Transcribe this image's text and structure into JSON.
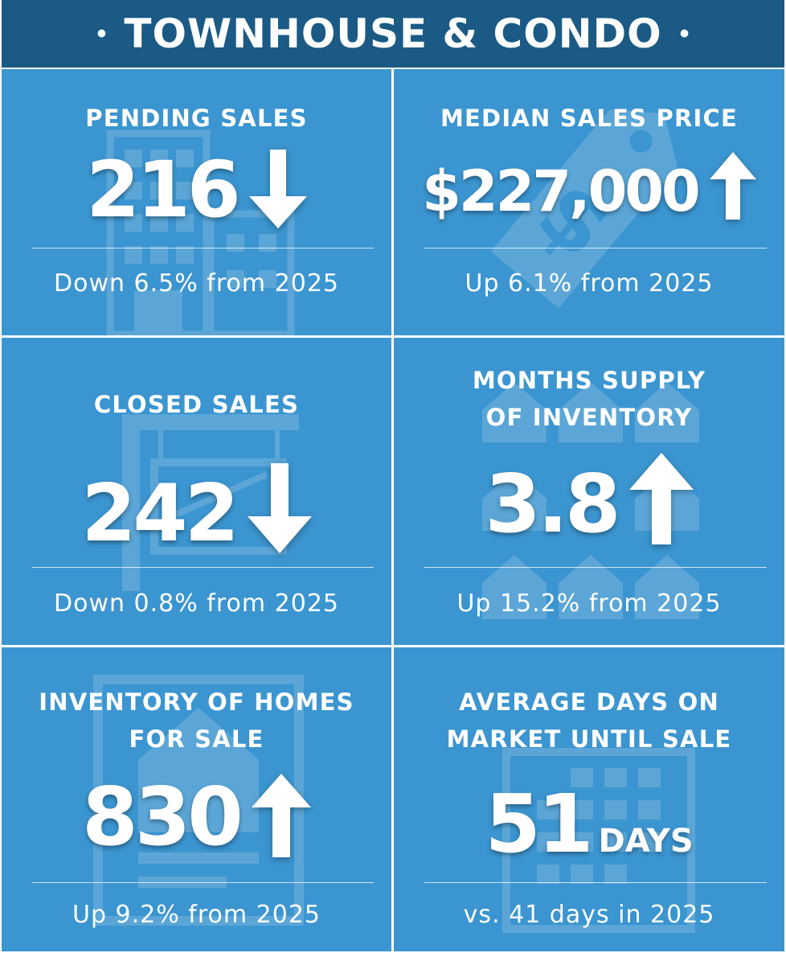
{
  "header": {
    "title": "TOWNHOUSE & CONDO",
    "bullet": "•"
  },
  "stats": {
    "pending": {
      "label": "PENDING SALES",
      "value": "216",
      "trend": "down",
      "change": "Down 6.5% from 2025"
    },
    "median": {
      "label": "MEDIAN SALES PRICE",
      "value": "$227,000",
      "trend": "up",
      "change": "Up 6.1% from 2025"
    },
    "closed": {
      "label": "CLOSED SALES",
      "value": "242",
      "trend": "down",
      "change": "Down 0.8% from 2025"
    },
    "supply": {
      "label_line1": "MONTHS SUPPLY",
      "label_line2": "OF INVENTORY",
      "value": "3.8",
      "trend": "up",
      "change": "Up 15.2% from 2025"
    },
    "inventory": {
      "label_line1": "INVENTORY OF HOMES",
      "label_line2": "FOR SALE",
      "value": "830",
      "trend": "up",
      "change": "Up 9.2% from 2025"
    },
    "dom": {
      "label_line1": "AVERAGE DAYS ON",
      "label_line2": "MARKET UNTIL SALE",
      "value": "51",
      "unit": "DAYS",
      "change": "vs. 41 days in 2025"
    }
  },
  "icons": [
    "building-icon",
    "price-tag-icon",
    "for-sale-sign-icon",
    "houses-icon",
    "house-document-icon",
    "calendar-icon",
    "arrow-down-icon",
    "arrow-up-icon"
  ],
  "colors": {
    "header": "#1a5a85",
    "tile": "#3b95d0",
    "text": "#ffffff"
  }
}
